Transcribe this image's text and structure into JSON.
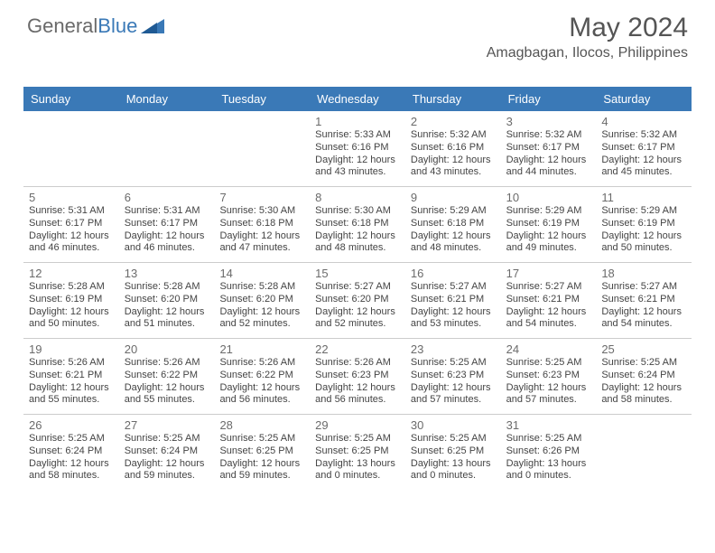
{
  "logo": {
    "part1": "General",
    "part2": "Blue"
  },
  "header": {
    "title": "May 2024",
    "subtitle": "Amagbagan, Ilocos, Philippines"
  },
  "colors": {
    "accent": "#3a79b7",
    "text": "#444444",
    "muted": "#6b6b6b",
    "border": "#cccccc",
    "bg": "#ffffff"
  },
  "typography": {
    "title_fontsize": 30,
    "subtitle_fontsize": 16,
    "daynum_fontsize": 13,
    "line_fontsize": 11
  },
  "dow": [
    "Sunday",
    "Monday",
    "Tuesday",
    "Wednesday",
    "Thursday",
    "Friday",
    "Saturday"
  ],
  "weeks": [
    [
      null,
      null,
      null,
      {
        "n": "1",
        "sr": "5:33 AM",
        "ss": "6:16 PM",
        "dl": "12 hours and 43 minutes."
      },
      {
        "n": "2",
        "sr": "5:32 AM",
        "ss": "6:16 PM",
        "dl": "12 hours and 43 minutes."
      },
      {
        "n": "3",
        "sr": "5:32 AM",
        "ss": "6:17 PM",
        "dl": "12 hours and 44 minutes."
      },
      {
        "n": "4",
        "sr": "5:32 AM",
        "ss": "6:17 PM",
        "dl": "12 hours and 45 minutes."
      }
    ],
    [
      {
        "n": "5",
        "sr": "5:31 AM",
        "ss": "6:17 PM",
        "dl": "12 hours and 46 minutes."
      },
      {
        "n": "6",
        "sr": "5:31 AM",
        "ss": "6:17 PM",
        "dl": "12 hours and 46 minutes."
      },
      {
        "n": "7",
        "sr": "5:30 AM",
        "ss": "6:18 PM",
        "dl": "12 hours and 47 minutes."
      },
      {
        "n": "8",
        "sr": "5:30 AM",
        "ss": "6:18 PM",
        "dl": "12 hours and 48 minutes."
      },
      {
        "n": "9",
        "sr": "5:29 AM",
        "ss": "6:18 PM",
        "dl": "12 hours and 48 minutes."
      },
      {
        "n": "10",
        "sr": "5:29 AM",
        "ss": "6:19 PM",
        "dl": "12 hours and 49 minutes."
      },
      {
        "n": "11",
        "sr": "5:29 AM",
        "ss": "6:19 PM",
        "dl": "12 hours and 50 minutes."
      }
    ],
    [
      {
        "n": "12",
        "sr": "5:28 AM",
        "ss": "6:19 PM",
        "dl": "12 hours and 50 minutes."
      },
      {
        "n": "13",
        "sr": "5:28 AM",
        "ss": "6:20 PM",
        "dl": "12 hours and 51 minutes."
      },
      {
        "n": "14",
        "sr": "5:28 AM",
        "ss": "6:20 PM",
        "dl": "12 hours and 52 minutes."
      },
      {
        "n": "15",
        "sr": "5:27 AM",
        "ss": "6:20 PM",
        "dl": "12 hours and 52 minutes."
      },
      {
        "n": "16",
        "sr": "5:27 AM",
        "ss": "6:21 PM",
        "dl": "12 hours and 53 minutes."
      },
      {
        "n": "17",
        "sr": "5:27 AM",
        "ss": "6:21 PM",
        "dl": "12 hours and 54 minutes."
      },
      {
        "n": "18",
        "sr": "5:27 AM",
        "ss": "6:21 PM",
        "dl": "12 hours and 54 minutes."
      }
    ],
    [
      {
        "n": "19",
        "sr": "5:26 AM",
        "ss": "6:21 PM",
        "dl": "12 hours and 55 minutes."
      },
      {
        "n": "20",
        "sr": "5:26 AM",
        "ss": "6:22 PM",
        "dl": "12 hours and 55 minutes."
      },
      {
        "n": "21",
        "sr": "5:26 AM",
        "ss": "6:22 PM",
        "dl": "12 hours and 56 minutes."
      },
      {
        "n": "22",
        "sr": "5:26 AM",
        "ss": "6:23 PM",
        "dl": "12 hours and 56 minutes."
      },
      {
        "n": "23",
        "sr": "5:25 AM",
        "ss": "6:23 PM",
        "dl": "12 hours and 57 minutes."
      },
      {
        "n": "24",
        "sr": "5:25 AM",
        "ss": "6:23 PM",
        "dl": "12 hours and 57 minutes."
      },
      {
        "n": "25",
        "sr": "5:25 AM",
        "ss": "6:24 PM",
        "dl": "12 hours and 58 minutes."
      }
    ],
    [
      {
        "n": "26",
        "sr": "5:25 AM",
        "ss": "6:24 PM",
        "dl": "12 hours and 58 minutes."
      },
      {
        "n": "27",
        "sr": "5:25 AM",
        "ss": "6:24 PM",
        "dl": "12 hours and 59 minutes."
      },
      {
        "n": "28",
        "sr": "5:25 AM",
        "ss": "6:25 PM",
        "dl": "12 hours and 59 minutes."
      },
      {
        "n": "29",
        "sr": "5:25 AM",
        "ss": "6:25 PM",
        "dl": "13 hours and 0 minutes."
      },
      {
        "n": "30",
        "sr": "5:25 AM",
        "ss": "6:25 PM",
        "dl": "13 hours and 0 minutes."
      },
      {
        "n": "31",
        "sr": "5:25 AM",
        "ss": "6:26 PM",
        "dl": "13 hours and 0 minutes."
      },
      null
    ]
  ],
  "labels": {
    "sunrise": "Sunrise: ",
    "sunset": "Sunset: ",
    "daylight": "Daylight: "
  }
}
